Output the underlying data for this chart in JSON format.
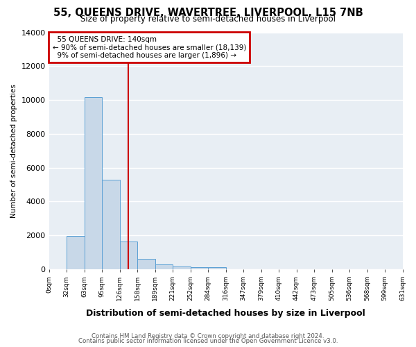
{
  "title": "55, QUEENS DRIVE, WAVERTREE, LIVERPOOL, L15 7NB",
  "subtitle": "Size of property relative to semi-detached houses in Liverpool",
  "xlabel": "Distribution of semi-detached houses by size in Liverpool",
  "ylabel": "Number of semi-detached properties",
  "property_label": "55 QUEENS DRIVE: 140sqm",
  "pct_smaller": 90,
  "count_smaller": 18139,
  "pct_larger": 9,
  "count_larger": 1896,
  "bin_labels": [
    "0sqm",
    "32sqm",
    "63sqm",
    "95sqm",
    "126sqm",
    "158sqm",
    "189sqm",
    "221sqm",
    "252sqm",
    "284sqm",
    "316sqm",
    "347sqm",
    "379sqm",
    "410sqm",
    "442sqm",
    "473sqm",
    "505sqm",
    "536sqm",
    "568sqm",
    "599sqm",
    "631sqm"
  ],
  "bar_values": [
    0,
    1980,
    10150,
    5300,
    1650,
    620,
    270,
    160,
    110,
    110,
    0,
    0,
    0,
    0,
    0,
    0,
    0,
    0,
    0,
    0
  ],
  "bar_color": "#c8d8e8",
  "bar_edge_color": "#5a9fd4",
  "vline_color": "#cc0000",
  "vline_bin_after": 4,
  "annotation_box_color": "#cc0000",
  "ylim": [
    0,
    14000
  ],
  "yticks": [
    0,
    2000,
    4000,
    6000,
    8000,
    10000,
    12000,
    14000
  ],
  "bg_color": "#e8eef4",
  "footer_line1": "Contains HM Land Registry data © Crown copyright and database right 2024.",
  "footer_line2": "Contains public sector information licensed under the Open Government Licence v3.0."
}
